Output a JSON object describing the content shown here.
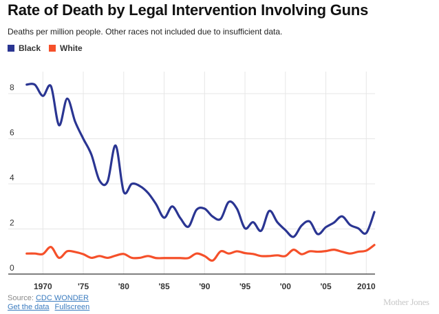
{
  "header": {
    "title": "Rate of Death by Legal Intervention Involving Guns",
    "subtitle": "Deaths per million people. Other races not included due to insufficient data."
  },
  "legend": [
    {
      "label": "Black",
      "color": "#2a3592"
    },
    {
      "label": "White",
      "color": "#f5502a"
    }
  ],
  "footer": {
    "source_prefix": "Source: ",
    "source_link": "CDC WONDER",
    "get_data_link": "Get the data",
    "fullscreen_link": "Fullscreen",
    "brand": "Mother Jones"
  },
  "chart_data": {
    "type": "line",
    "title": "Rate of Death by Legal Intervention Involving Guns",
    "subtitle": "Deaths per million people. Other races not included due to insufficient data.",
    "xlabel": "",
    "ylabel": "",
    "xlim": [
      1968,
      2011
    ],
    "ylim": [
      0,
      9.0
    ],
    "grid": true,
    "legend_position": "top-left",
    "y_ticks": [
      {
        "value": 0,
        "label": "0"
      },
      {
        "value": 2,
        "label": "2"
      },
      {
        "value": 4,
        "label": "4"
      },
      {
        "value": 6,
        "label": "6"
      },
      {
        "value": 8,
        "label": "8"
      }
    ],
    "x_ticks": [
      {
        "value": 1970,
        "label": "1970"
      },
      {
        "value": 1975,
        "label": "'75"
      },
      {
        "value": 1980,
        "label": "'80"
      },
      {
        "value": 1985,
        "label": "'85"
      },
      {
        "value": 1990,
        "label": "'90"
      },
      {
        "value": 1995,
        "label": "'95"
      },
      {
        "value": 2000,
        "label": "'00"
      },
      {
        "value": 2005,
        "label": "'05"
      },
      {
        "value": 2010,
        "label": "2010"
      }
    ],
    "x": [
      1968,
      1969,
      1970,
      1971,
      1972,
      1973,
      1974,
      1975,
      1976,
      1977,
      1978,
      1979,
      1980,
      1981,
      1982,
      1983,
      1984,
      1985,
      1986,
      1987,
      1988,
      1989,
      1990,
      1991,
      1992,
      1993,
      1994,
      1995,
      1996,
      1997,
      1998,
      1999,
      2000,
      2001,
      2002,
      2003,
      2004,
      2005,
      2006,
      2007,
      2008,
      2009,
      2010,
      2011
    ],
    "series": [
      {
        "name": "Black",
        "color": "#2a3592",
        "values": [
          8.4,
          8.4,
          7.9,
          8.33,
          6.6,
          7.78,
          6.75,
          6.0,
          5.3,
          4.15,
          4.1,
          5.7,
          3.65,
          4.0,
          3.9,
          3.6,
          3.1,
          2.5,
          3.0,
          2.48,
          2.1,
          2.85,
          2.9,
          2.55,
          2.45,
          3.2,
          2.9,
          2.03,
          2.3,
          1.92,
          2.8,
          2.3,
          1.95,
          1.65,
          2.15,
          2.33,
          1.77,
          2.08,
          2.28,
          2.56,
          2.18,
          2.03,
          1.82,
          2.75
        ]
      },
      {
        "name": "White",
        "color": "#f5502a",
        "values": [
          0.91,
          0.91,
          0.89,
          1.2,
          0.72,
          1.01,
          0.98,
          0.88,
          0.72,
          0.8,
          0.72,
          0.82,
          0.89,
          0.72,
          0.72,
          0.8,
          0.71,
          0.71,
          0.71,
          0.71,
          0.71,
          0.91,
          0.8,
          0.6,
          1.01,
          0.91,
          1.01,
          0.93,
          0.89,
          0.8,
          0.8,
          0.83,
          0.8,
          1.08,
          0.88,
          1.01,
          0.99,
          1.02,
          1.08,
          0.99,
          0.91,
          0.99,
          1.04,
          1.29
        ]
      }
    ]
  }
}
